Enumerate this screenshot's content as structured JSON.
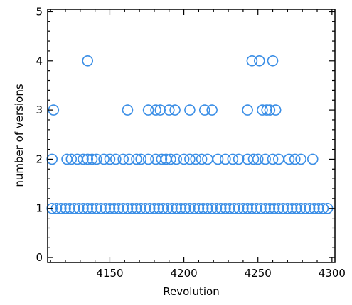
{
  "chart_data": {
    "type": "scatter",
    "title": "",
    "xlabel": "Revolution",
    "ylabel": "number of versions",
    "xlim": [
      4108,
      4302
    ],
    "ylim": [
      -0.1,
      5.05
    ],
    "xticks": [
      4150,
      4200,
      4250,
      4300
    ],
    "yticks": [
      0,
      1,
      2,
      3,
      4,
      5
    ],
    "grid": false,
    "legend": "none",
    "marker": "open-circle",
    "marker_color": "#3a8ee6",
    "series": [
      {
        "name": "",
        "points": [
          {
            "x": 4111,
            "y": 1
          },
          {
            "x": 4114,
            "y": 1
          },
          {
            "x": 4117,
            "y": 1
          },
          {
            "x": 4120,
            "y": 1
          },
          {
            "x": 4123,
            "y": 1
          },
          {
            "x": 4126,
            "y": 1
          },
          {
            "x": 4129,
            "y": 1
          },
          {
            "x": 4132,
            "y": 1
          },
          {
            "x": 4135,
            "y": 1
          },
          {
            "x": 4138,
            "y": 1
          },
          {
            "x": 4141,
            "y": 1
          },
          {
            "x": 4144,
            "y": 1
          },
          {
            "x": 4147,
            "y": 1
          },
          {
            "x": 4150,
            "y": 1
          },
          {
            "x": 4153,
            "y": 1
          },
          {
            "x": 4156,
            "y": 1
          },
          {
            "x": 4159,
            "y": 1
          },
          {
            "x": 4162,
            "y": 1
          },
          {
            "x": 4165,
            "y": 1
          },
          {
            "x": 4168,
            "y": 1
          },
          {
            "x": 4171,
            "y": 1
          },
          {
            "x": 4174,
            "y": 1
          },
          {
            "x": 4177,
            "y": 1
          },
          {
            "x": 4180,
            "y": 1
          },
          {
            "x": 4183,
            "y": 1
          },
          {
            "x": 4186,
            "y": 1
          },
          {
            "x": 4189,
            "y": 1
          },
          {
            "x": 4192,
            "y": 1
          },
          {
            "x": 4195,
            "y": 1
          },
          {
            "x": 4198,
            "y": 1
          },
          {
            "x": 4201,
            "y": 1
          },
          {
            "x": 4204,
            "y": 1
          },
          {
            "x": 4207,
            "y": 1
          },
          {
            "x": 4210,
            "y": 1
          },
          {
            "x": 4213,
            "y": 1
          },
          {
            "x": 4216,
            "y": 1
          },
          {
            "x": 4219,
            "y": 1
          },
          {
            "x": 4222,
            "y": 1
          },
          {
            "x": 4225,
            "y": 1
          },
          {
            "x": 4228,
            "y": 1
          },
          {
            "x": 4231,
            "y": 1
          },
          {
            "x": 4234,
            "y": 1
          },
          {
            "x": 4237,
            "y": 1
          },
          {
            "x": 4240,
            "y": 1
          },
          {
            "x": 4243,
            "y": 1
          },
          {
            "x": 4246,
            "y": 1
          },
          {
            "x": 4249,
            "y": 1
          },
          {
            "x": 4252,
            "y": 1
          },
          {
            "x": 4255,
            "y": 1
          },
          {
            "x": 4258,
            "y": 1
          },
          {
            "x": 4261,
            "y": 1
          },
          {
            "x": 4264,
            "y": 1
          },
          {
            "x": 4267,
            "y": 1
          },
          {
            "x": 4270,
            "y": 1
          },
          {
            "x": 4273,
            "y": 1
          },
          {
            "x": 4276,
            "y": 1
          },
          {
            "x": 4279,
            "y": 1
          },
          {
            "x": 4282,
            "y": 1
          },
          {
            "x": 4285,
            "y": 1
          },
          {
            "x": 4288,
            "y": 1
          },
          {
            "x": 4291,
            "y": 1
          },
          {
            "x": 4294,
            "y": 1
          },
          {
            "x": 4297,
            "y": 1
          },
          {
            "x": 4111,
            "y": 2
          },
          {
            "x": 4121,
            "y": 2
          },
          {
            "x": 4124,
            "y": 2
          },
          {
            "x": 4128,
            "y": 2
          },
          {
            "x": 4132,
            "y": 2
          },
          {
            "x": 4135,
            "y": 2
          },
          {
            "x": 4138,
            "y": 2
          },
          {
            "x": 4141,
            "y": 2
          },
          {
            "x": 4146,
            "y": 2
          },
          {
            "x": 4150,
            "y": 2
          },
          {
            "x": 4154,
            "y": 2
          },
          {
            "x": 4159,
            "y": 2
          },
          {
            "x": 4163,
            "y": 2
          },
          {
            "x": 4168,
            "y": 2
          },
          {
            "x": 4171,
            "y": 2
          },
          {
            "x": 4176,
            "y": 2
          },
          {
            "x": 4181,
            "y": 2
          },
          {
            "x": 4185,
            "y": 2
          },
          {
            "x": 4188,
            "y": 2
          },
          {
            "x": 4191,
            "y": 2
          },
          {
            "x": 4195,
            "y": 2
          },
          {
            "x": 4200,
            "y": 2
          },
          {
            "x": 4204,
            "y": 2
          },
          {
            "x": 4208,
            "y": 2
          },
          {
            "x": 4212,
            "y": 2
          },
          {
            "x": 4216,
            "y": 2
          },
          {
            "x": 4223,
            "y": 2
          },
          {
            "x": 4228,
            "y": 2
          },
          {
            "x": 4233,
            "y": 2
          },
          {
            "x": 4237,
            "y": 2
          },
          {
            "x": 4243,
            "y": 2
          },
          {
            "x": 4247,
            "y": 2
          },
          {
            "x": 4250,
            "y": 2
          },
          {
            "x": 4255,
            "y": 2
          },
          {
            "x": 4260,
            "y": 2
          },
          {
            "x": 4264,
            "y": 2
          },
          {
            "x": 4271,
            "y": 2
          },
          {
            "x": 4275,
            "y": 2
          },
          {
            "x": 4279,
            "y": 2
          },
          {
            "x": 4287,
            "y": 2
          },
          {
            "x": 4112,
            "y": 3
          },
          {
            "x": 4162,
            "y": 3
          },
          {
            "x": 4176,
            "y": 3
          },
          {
            "x": 4181,
            "y": 3
          },
          {
            "x": 4184,
            "y": 3
          },
          {
            "x": 4190,
            "y": 3
          },
          {
            "x": 4194,
            "y": 3
          },
          {
            "x": 4204,
            "y": 3
          },
          {
            "x": 4214,
            "y": 3
          },
          {
            "x": 4219,
            "y": 3
          },
          {
            "x": 4243,
            "y": 3
          },
          {
            "x": 4253,
            "y": 3
          },
          {
            "x": 4256,
            "y": 3
          },
          {
            "x": 4258,
            "y": 3
          },
          {
            "x": 4262,
            "y": 3
          },
          {
            "x": 4135,
            "y": 4
          },
          {
            "x": 4246,
            "y": 4
          },
          {
            "x": 4251,
            "y": 4
          },
          {
            "x": 4260,
            "y": 4
          }
        ]
      }
    ]
  }
}
